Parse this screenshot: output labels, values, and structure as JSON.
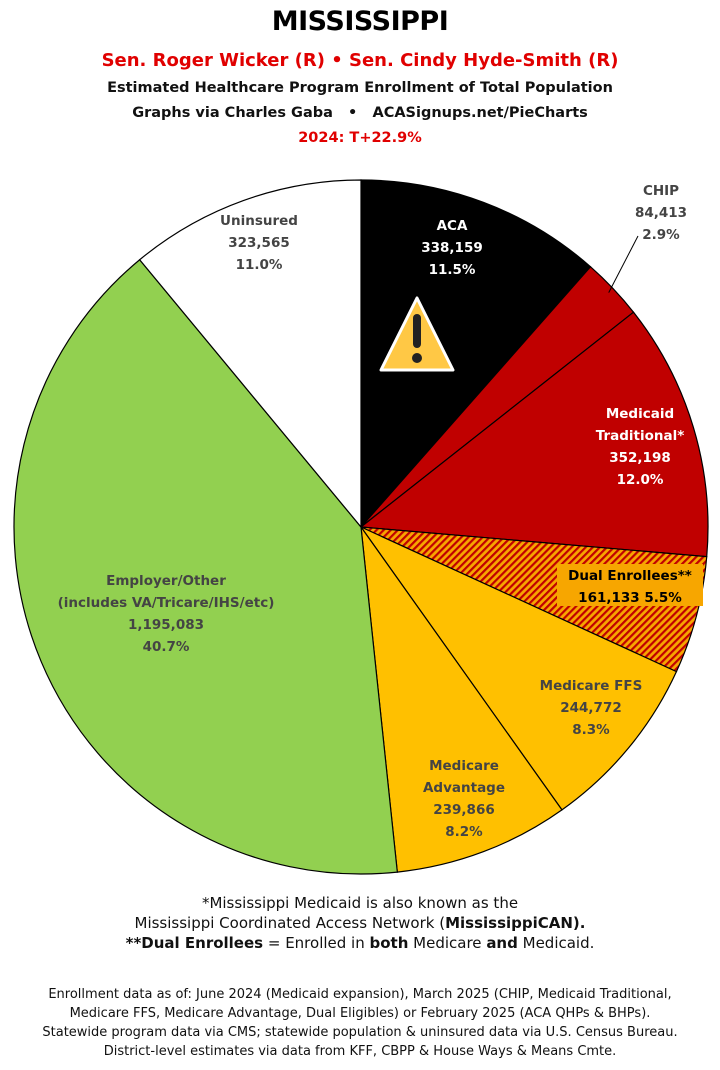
{
  "header": {
    "title": "MISSISSIPPI",
    "senators": "Sen. Roger Wicker (R) • Sen. Cindy Hyde-Smith (R)",
    "subtitle": "Estimated Healthcare Program Enrollment of Total Population",
    "credit": "Graphs via Charles Gaba   •   ACASignups.net/PieCharts",
    "trend": "2024: T+22.9%"
  },
  "chart_data": {
    "type": "pie",
    "start": "12 o'clock, clockwise",
    "slices": [
      {
        "name": "ACA",
        "value": 338159,
        "pct": "11.5%",
        "pct_value": 11.5,
        "color": "#000000",
        "label_color": "#ffffff",
        "icon": "warning-icon"
      },
      {
        "name": "CHIP",
        "value": 84413,
        "pct": "2.9%",
        "pct_value": 2.9,
        "color": "#c00000",
        "label_color": "#444444",
        "leader_line": true
      },
      {
        "name": "Medicaid Traditional*",
        "value": 352198,
        "pct": "12.0%",
        "pct_value": 12.0,
        "color": "#c00000",
        "label_color": "#ffffff"
      },
      {
        "name": "Dual Enrollees**",
        "value": 161133,
        "pct": "5.5%",
        "pct_value": 5.5,
        "color": "#f7a600",
        "pattern": "hatched red/orange",
        "label_color": "#000000"
      },
      {
        "name": "Medicare FFS",
        "value": 244772,
        "pct": "8.3%",
        "pct_value": 8.3,
        "color": "#ffc000",
        "label_color": "#444444"
      },
      {
        "name": "Medicare Advantage",
        "value": 239866,
        "pct": "8.2%",
        "pct_value": 8.2,
        "color": "#ffc000",
        "label_color": "#444444"
      },
      {
        "name": "Employer/Other (includes VA/Tricare/IHS/etc)",
        "value": 1195083,
        "pct": "40.7%",
        "pct_value": 40.7,
        "color": "#92d050",
        "label_color": "#444444"
      },
      {
        "name": "Uninsured",
        "value": 323565,
        "pct": "11.0%",
        "pct_value": 11.0,
        "color": "#ffffff",
        "label_color": "#444444"
      }
    ],
    "labels": [
      [
        "ACA",
        "338,159",
        "11.5%"
      ],
      [
        "CHIP",
        "84,413",
        "2.9%"
      ],
      [
        "Medicaid",
        "Traditional*",
        "352,198",
        "12.0%"
      ],
      [
        "Dual Enrollees**",
        "161,133 5.5%"
      ],
      [
        "Medicare FFS",
        "244,772",
        "8.3%"
      ],
      [
        "Medicare",
        "Advantage",
        "239,866",
        "8.2%"
      ],
      [
        "Employer/Other",
        "(includes VA/Tricare/IHS/etc)",
        "1,195,083",
        "40.7%"
      ],
      [
        "Uninsured",
        "323,565",
        "11.0%"
      ]
    ]
  },
  "notes": {
    "n1a": "*Mississippi Medicaid is also known as the",
    "n1b": "Mississippi Coordinated Access Network (",
    "n1b_bold": "MississippiCAN).",
    "n2_bold1": "**Dual Enrollees",
    "n2_a": " = Enrolled in ",
    "n2_bold2": "both",
    "n2_b": " Medicare ",
    "n2_bold3": "and",
    "n2_c": " Medicaid.",
    "s1": "Enrollment data as of: June 2024 (Medicaid expansion), March 2025 (CHIP, Medicaid Traditional,",
    "s2": "Medicare FFS, Medicare Advantage, Dual Eligibles) or February 2025 (ACA QHPs & BHPs).",
    "s3": "Statewide program data via CMS; statewide population & uninsured data via U.S. Census Bureau.",
    "s4": "District-level estimates via data from KFF, CBPP & House Ways & Means Cmte."
  }
}
